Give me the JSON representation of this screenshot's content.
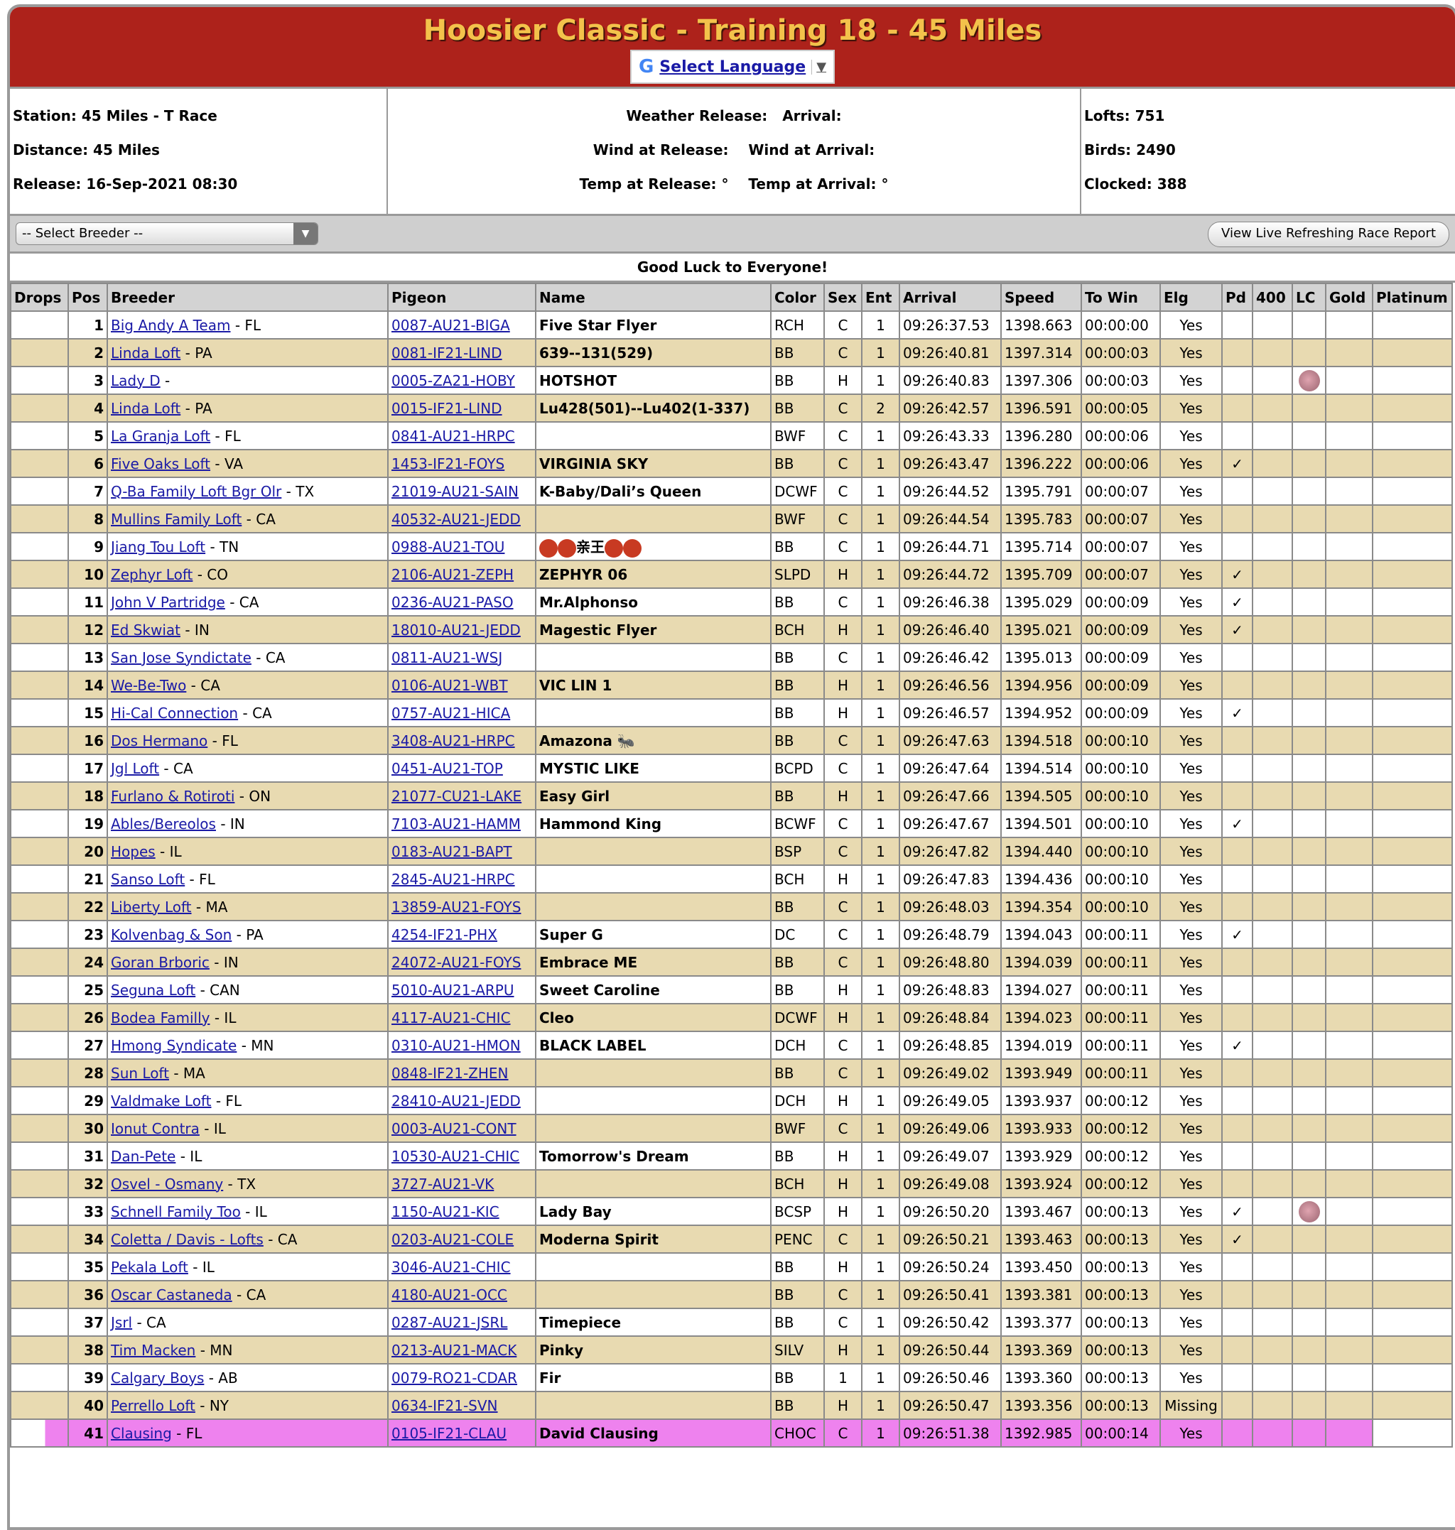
{
  "header": {
    "title": "Hoosier Classic - Training 18 - 45 Miles",
    "language_label": "Select Language",
    "language_arrow": "▼"
  },
  "info": {
    "station": "Station: 45 Miles - T Race",
    "distance": "Distance: 45 Miles",
    "release": "Release: 16-Sep-2021 08:30",
    "weather_release": "Weather Release:",
    "arrival": "Arrival:",
    "wind_release": "Wind at Release:",
    "wind_arrival": "Wind at Arrival:",
    "temp_release": "Temp at Release: °",
    "temp_arrival": "Temp at Arrival: °",
    "lofts": "Lofts: 751",
    "birds": "Birds: 2490",
    "clocked": "Clocked: 388"
  },
  "toolbar": {
    "breeder_select": "-- Select Breeder --",
    "live_report": "View Live Refreshing Race Report"
  },
  "banner": "Good Luck to Everyone!",
  "colors": {
    "title_bg": "#ad221b",
    "title_text": "#f3c24b",
    "row_alt": "#e8dab1",
    "highlight": "#ee82ee",
    "link": "#1a1aa6"
  },
  "table": {
    "columns": [
      "Drops",
      "Pos",
      "Breeder",
      "Pigeon",
      "Name",
      "Color",
      "Sex",
      "Ent",
      "Arrival",
      "Speed",
      "To Win",
      "Elg",
      "Pd",
      "400",
      "LC",
      "Gold",
      "Platinum"
    ],
    "rows": [
      {
        "pos": "1",
        "breeder": "Big Andy A Team",
        "state": "FL",
        "pigeon": "0087-AU21-BIGA",
        "name": "Five Star Flyer",
        "color": "RCH",
        "sex": "C",
        "ent": "1",
        "arrival": "09:26:37.53",
        "speed": "1398.663",
        "towin": "00:00:00",
        "elg": "Yes",
        "pd": "",
        "lc": ""
      },
      {
        "pos": "2",
        "breeder": "Linda Loft",
        "state": "PA",
        "pigeon": "0081-IF21-LIND",
        "name": "639--131(529)",
        "color": "BB",
        "sex": "C",
        "ent": "1",
        "arrival": "09:26:40.81",
        "speed": "1397.314",
        "towin": "00:00:03",
        "elg": "Yes",
        "pd": "",
        "lc": ""
      },
      {
        "pos": "3",
        "breeder": "Lady D",
        "state": "",
        "pigeon": "0005-ZA21-HOBY",
        "name": "HOTSHOT",
        "color": "BB",
        "sex": "H",
        "ent": "1",
        "arrival": "09:26:40.83",
        "speed": "1397.306",
        "towin": "00:00:03",
        "elg": "Yes",
        "pd": "",
        "lc": "pink-ball-icon"
      },
      {
        "pos": "4",
        "breeder": "Linda Loft",
        "state": "PA",
        "pigeon": "0015-IF21-LIND",
        "name": "Lu428(501)--Lu402(1-337)",
        "color": "BB",
        "sex": "C",
        "ent": "2",
        "arrival": "09:26:42.57",
        "speed": "1396.591",
        "towin": "00:00:05",
        "elg": "Yes",
        "pd": "",
        "lc": ""
      },
      {
        "pos": "5",
        "breeder": "La Granja Loft",
        "state": "FL",
        "pigeon": "0841-AU21-HRPC",
        "name": "",
        "color": "BWF",
        "sex": "C",
        "ent": "1",
        "arrival": "09:26:43.33",
        "speed": "1396.280",
        "towin": "00:00:06",
        "elg": "Yes",
        "pd": "",
        "lc": ""
      },
      {
        "pos": "6",
        "breeder": "Five Oaks Loft",
        "state": "VA",
        "pigeon": "1453-IF21-FOYS",
        "name": "VIRGINIA SKY",
        "color": "BB",
        "sex": "C",
        "ent": "1",
        "arrival": "09:26:43.47",
        "speed": "1396.222",
        "towin": "00:00:06",
        "elg": "Yes",
        "pd": "✓",
        "lc": ""
      },
      {
        "pos": "7",
        "breeder": "Q-Ba Family Loft Bgr Olr",
        "state": "TX",
        "pigeon": "21019-AU21-SAIN",
        "name": "K-Baby/Dali’s Queen",
        "color": "DCWF",
        "sex": "C",
        "ent": "1",
        "arrival": "09:26:44.52",
        "speed": "1395.791",
        "towin": "00:00:07",
        "elg": "Yes",
        "pd": "",
        "lc": ""
      },
      {
        "pos": "8",
        "breeder": "Mullins Family Loft",
        "state": "CA",
        "pigeon": "40532-AU21-JEDD",
        "name": "",
        "color": "BWF",
        "sex": "C",
        "ent": "1",
        "arrival": "09:26:44.54",
        "speed": "1395.783",
        "towin": "00:00:07",
        "elg": "Yes",
        "pd": "",
        "lc": ""
      },
      {
        "pos": "9",
        "breeder": "Jiang Tou Loft",
        "state": "TN",
        "pigeon": "0988-AU21-TOU",
        "name": "亲王",
        "name_emoji": "red-circle",
        "color": "BB",
        "sex": "C",
        "ent": "1",
        "arrival": "09:26:44.71",
        "speed": "1395.714",
        "towin": "00:00:07",
        "elg": "Yes",
        "pd": "",
        "lc": ""
      },
      {
        "pos": "10",
        "breeder": "Zephyr Loft",
        "state": "CO",
        "pigeon": "2106-AU21-ZEPH",
        "name": "ZEPHYR 06",
        "color": "SLPD",
        "sex": "H",
        "ent": "1",
        "arrival": "09:26:44.72",
        "speed": "1395.709",
        "towin": "00:00:07",
        "elg": "Yes",
        "pd": "✓",
        "lc": ""
      },
      {
        "pos": "11",
        "breeder": "John V Partridge",
        "state": "CA",
        "pigeon": "0236-AU21-PASO",
        "name": "Mr.Alphonso",
        "color": "BB",
        "sex": "C",
        "ent": "1",
        "arrival": "09:26:46.38",
        "speed": "1395.029",
        "towin": "00:00:09",
        "elg": "Yes",
        "pd": "✓",
        "lc": ""
      },
      {
        "pos": "12",
        "breeder": "Ed Skwiat",
        "state": "IN",
        "pigeon": "18010-AU21-JEDD",
        "name": "Magestic Flyer",
        "color": "BCH",
        "sex": "H",
        "ent": "1",
        "arrival": "09:26:46.40",
        "speed": "1395.021",
        "towin": "00:00:09",
        "elg": "Yes",
        "pd": "✓",
        "lc": ""
      },
      {
        "pos": "13",
        "breeder": "San Jose Syndictate",
        "state": "CA",
        "pigeon": "0811-AU21-WSJ",
        "name": "",
        "color": "BB",
        "sex": "C",
        "ent": "1",
        "arrival": "09:26:46.42",
        "speed": "1395.013",
        "towin": "00:00:09",
        "elg": "Yes",
        "pd": "",
        "lc": ""
      },
      {
        "pos": "14",
        "breeder": "We-Be-Two",
        "state": "CA",
        "pigeon": "0106-AU21-WBT",
        "name": "VIC LIN 1",
        "color": "BB",
        "sex": "H",
        "ent": "1",
        "arrival": "09:26:46.56",
        "speed": "1394.956",
        "towin": "00:00:09",
        "elg": "Yes",
        "pd": "",
        "lc": ""
      },
      {
        "pos": "15",
        "breeder": "Hi-Cal Connection",
        "state": "CA",
        "pigeon": "0757-AU21-HICA",
        "name": "",
        "color": "BB",
        "sex": "H",
        "ent": "1",
        "arrival": "09:26:46.57",
        "speed": "1394.952",
        "towin": "00:00:09",
        "elg": "Yes",
        "pd": "✓",
        "lc": ""
      },
      {
        "pos": "16",
        "breeder": "Dos Hermano",
        "state": "FL",
        "pigeon": "3408-AU21-HRPC",
        "name": "Amazona 🐜",
        "color": "BB",
        "sex": "C",
        "ent": "1",
        "arrival": "09:26:47.63",
        "speed": "1394.518",
        "towin": "00:00:10",
        "elg": "Yes",
        "pd": "",
        "lc": ""
      },
      {
        "pos": "17",
        "breeder": "Jgl Loft",
        "state": "CA",
        "pigeon": "0451-AU21-TOP",
        "name": "MYSTIC LIKE",
        "color": "BCPD",
        "sex": "C",
        "ent": "1",
        "arrival": "09:26:47.64",
        "speed": "1394.514",
        "towin": "00:00:10",
        "elg": "Yes",
        "pd": "",
        "lc": ""
      },
      {
        "pos": "18",
        "breeder": "Furlano & Rotiroti",
        "state": "ON",
        "pigeon": "21077-CU21-LAKE",
        "name": "Easy Girl",
        "color": "BB",
        "sex": "H",
        "ent": "1",
        "arrival": "09:26:47.66",
        "speed": "1394.505",
        "towin": "00:00:10",
        "elg": "Yes",
        "pd": "",
        "lc": ""
      },
      {
        "pos": "19",
        "breeder": "Ables/Bereolos",
        "state": "IN",
        "pigeon": "7103-AU21-HAMM",
        "name": "Hammond King",
        "color": "BCWF",
        "sex": "C",
        "ent": "1",
        "arrival": "09:26:47.67",
        "speed": "1394.501",
        "towin": "00:00:10",
        "elg": "Yes",
        "pd": "✓",
        "lc": ""
      },
      {
        "pos": "20",
        "breeder": "Hopes",
        "state": "IL",
        "pigeon": "0183-AU21-BAPT",
        "name": "",
        "color": "BSP",
        "sex": "C",
        "ent": "1",
        "arrival": "09:26:47.82",
        "speed": "1394.440",
        "towin": "00:00:10",
        "elg": "Yes",
        "pd": "",
        "lc": ""
      },
      {
        "pos": "21",
        "breeder": "Sanso Loft",
        "state": "FL",
        "pigeon": "2845-AU21-HRPC",
        "name": "",
        "color": "BCH",
        "sex": "H",
        "ent": "1",
        "arrival": "09:26:47.83",
        "speed": "1394.436",
        "towin": "00:00:10",
        "elg": "Yes",
        "pd": "",
        "lc": ""
      },
      {
        "pos": "22",
        "breeder": "Liberty Loft",
        "state": "MA",
        "pigeon": "13859-AU21-FOYS",
        "name": "",
        "color": "BB",
        "sex": "C",
        "ent": "1",
        "arrival": "09:26:48.03",
        "speed": "1394.354",
        "towin": "00:00:10",
        "elg": "Yes",
        "pd": "",
        "lc": ""
      },
      {
        "pos": "23",
        "breeder": "Kolvenbag & Son",
        "state": "PA",
        "pigeon": "4254-IF21-PHX",
        "name": "Super G",
        "color": "DC",
        "sex": "C",
        "ent": "1",
        "arrival": "09:26:48.79",
        "speed": "1394.043",
        "towin": "00:00:11",
        "elg": "Yes",
        "pd": "✓",
        "lc": ""
      },
      {
        "pos": "24",
        "breeder": "Goran Brboric",
        "state": "IN",
        "pigeon": "24072-AU21-FOYS",
        "name": "Embrace ME",
        "color": "BB",
        "sex": "C",
        "ent": "1",
        "arrival": "09:26:48.80",
        "speed": "1394.039",
        "towin": "00:00:11",
        "elg": "Yes",
        "pd": "",
        "lc": ""
      },
      {
        "pos": "25",
        "breeder": "Seguna Loft",
        "state": "CAN",
        "pigeon": "5010-AU21-ARPU",
        "name": "Sweet Caroline",
        "color": "BB",
        "sex": "H",
        "ent": "1",
        "arrival": "09:26:48.83",
        "speed": "1394.027",
        "towin": "00:00:11",
        "elg": "Yes",
        "pd": "",
        "lc": ""
      },
      {
        "pos": "26",
        "breeder": "Bodea Familly",
        "state": "IL",
        "pigeon": "4117-AU21-CHIC",
        "name": "Cleo",
        "color": "DCWF",
        "sex": "H",
        "ent": "1",
        "arrival": "09:26:48.84",
        "speed": "1394.023",
        "towin": "00:00:11",
        "elg": "Yes",
        "pd": "",
        "lc": ""
      },
      {
        "pos": "27",
        "breeder": "Hmong Syndicate",
        "state": "MN",
        "pigeon": "0310-AU21-HMON",
        "name": "BLACK LABEL",
        "color": "DCH",
        "sex": "C",
        "ent": "1",
        "arrival": "09:26:48.85",
        "speed": "1394.019",
        "towin": "00:00:11",
        "elg": "Yes",
        "pd": "✓",
        "lc": ""
      },
      {
        "pos": "28",
        "breeder": "Sun Loft",
        "state": "MA",
        "pigeon": "0848-IF21-ZHEN",
        "name": "",
        "color": "BB",
        "sex": "C",
        "ent": "1",
        "arrival": "09:26:49.02",
        "speed": "1393.949",
        "towin": "00:00:11",
        "elg": "Yes",
        "pd": "",
        "lc": ""
      },
      {
        "pos": "29",
        "breeder": "Valdmake Loft",
        "state": "FL",
        "pigeon": "28410-AU21-JEDD",
        "name": "",
        "color": "DCH",
        "sex": "H",
        "ent": "1",
        "arrival": "09:26:49.05",
        "speed": "1393.937",
        "towin": "00:00:12",
        "elg": "Yes",
        "pd": "",
        "lc": ""
      },
      {
        "pos": "30",
        "breeder": "Ionut Contra",
        "state": "IL",
        "pigeon": "0003-AU21-CONT",
        "name": "",
        "color": "BWF",
        "sex": "C",
        "ent": "1",
        "arrival": "09:26:49.06",
        "speed": "1393.933",
        "towin": "00:00:12",
        "elg": "Yes",
        "pd": "",
        "lc": ""
      },
      {
        "pos": "31",
        "breeder": "Dan-Pete",
        "state": "IL",
        "pigeon": "10530-AU21-CHIC",
        "name": "Tomorrow's Dream",
        "color": "BB",
        "sex": "H",
        "ent": "1",
        "arrival": "09:26:49.07",
        "speed": "1393.929",
        "towin": "00:00:12",
        "elg": "Yes",
        "pd": "",
        "lc": ""
      },
      {
        "pos": "32",
        "breeder": "Osvel - Osmany",
        "state": "TX",
        "pigeon": "3727-AU21-VK",
        "name": "",
        "color": "BCH",
        "sex": "H",
        "ent": "1",
        "arrival": "09:26:49.08",
        "speed": "1393.924",
        "towin": "00:00:12",
        "elg": "Yes",
        "pd": "",
        "lc": ""
      },
      {
        "pos": "33",
        "breeder": "Schnell Family Too",
        "state": "IL",
        "pigeon": "1150-AU21-KIC",
        "name": "Lady Bay",
        "color": "BCSP",
        "sex": "H",
        "ent": "1",
        "arrival": "09:26:50.20",
        "speed": "1393.467",
        "towin": "00:00:13",
        "elg": "Yes",
        "pd": "✓",
        "lc": "pink-ball-icon"
      },
      {
        "pos": "34",
        "breeder": "Coletta / Davis - Lofts",
        "state": "CA",
        "pigeon": "0203-AU21-COLE",
        "name": "Moderna Spirit",
        "color": "PENC",
        "sex": "C",
        "ent": "1",
        "arrival": "09:26:50.21",
        "speed": "1393.463",
        "towin": "00:00:13",
        "elg": "Yes",
        "pd": "✓",
        "lc": ""
      },
      {
        "pos": "35",
        "breeder": "Pekala Loft",
        "state": "IL",
        "pigeon": "3046-AU21-CHIC",
        "name": "",
        "color": "BB",
        "sex": "H",
        "ent": "1",
        "arrival": "09:26:50.24",
        "speed": "1393.450",
        "towin": "00:00:13",
        "elg": "Yes",
        "pd": "",
        "lc": ""
      },
      {
        "pos": "36",
        "breeder": "Oscar Castaneda",
        "state": "CA",
        "pigeon": "4180-AU21-OCC",
        "name": "",
        "color": "BB",
        "sex": "C",
        "ent": "1",
        "arrival": "09:26:50.41",
        "speed": "1393.381",
        "towin": "00:00:13",
        "elg": "Yes",
        "pd": "",
        "lc": ""
      },
      {
        "pos": "37",
        "breeder": "Jsrl",
        "state": "CA",
        "pigeon": "0287-AU21-JSRL",
        "name": "Timepiece",
        "color": "BB",
        "sex": "C",
        "ent": "1",
        "arrival": "09:26:50.42",
        "speed": "1393.377",
        "towin": "00:00:13",
        "elg": "Yes",
        "pd": "",
        "lc": ""
      },
      {
        "pos": "38",
        "breeder": "Tim Macken",
        "state": "MN",
        "pigeon": "0213-AU21-MACK",
        "name": "Pinky",
        "color": "SILV",
        "sex": "H",
        "ent": "1",
        "arrival": "09:26:50.44",
        "speed": "1393.369",
        "towin": "00:00:13",
        "elg": "Yes",
        "pd": "",
        "lc": ""
      },
      {
        "pos": "39",
        "breeder": "Calgary Boys",
        "state": "AB",
        "pigeon": "0079-RO21-CDAR",
        "name": "Fir",
        "color": "BB",
        "sex": "1",
        "ent": "1",
        "arrival": "09:26:50.46",
        "speed": "1393.360",
        "towin": "00:00:13",
        "elg": "Yes",
        "pd": "",
        "lc": ""
      },
      {
        "pos": "40",
        "breeder": "Perrello Loft",
        "state": "NY",
        "pigeon": "0634-IF21-SVN",
        "name": "",
        "color": "BB",
        "sex": "H",
        "ent": "1",
        "arrival": "09:26:50.47",
        "speed": "1393.356",
        "towin": "00:00:13",
        "elg": "Missing",
        "pd": "",
        "lc": ""
      },
      {
        "pos": "41",
        "breeder": "Clausing",
        "state": "FL",
        "pigeon": "0105-IF21-CLAU",
        "name": "David Clausing",
        "color": "CHOC",
        "sex": "C",
        "ent": "1",
        "arrival": "09:26:51.38",
        "speed": "1392.985",
        "towin": "00:00:14",
        "elg": "Yes",
        "pd": "",
        "lc": "",
        "highlighted": true
      }
    ]
  }
}
